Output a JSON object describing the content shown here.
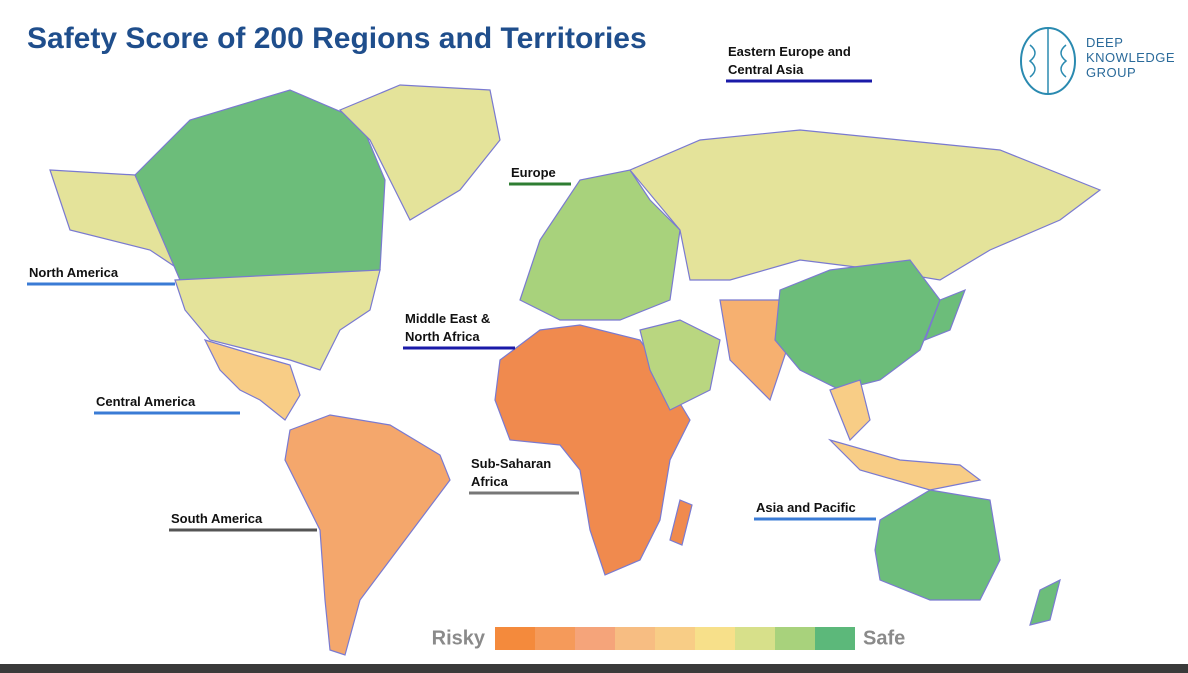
{
  "title": "Safety Score of 200 Regions and Territories",
  "logo": {
    "lines": [
      "DEEP",
      "KNOWLEDGE",
      "GROUP"
    ]
  },
  "regions": [
    {
      "lines": [
        "Eastern Europe and",
        "Central Asia"
      ],
      "underline_color": "#1a1aa8"
    },
    {
      "lines": [
        "Europe"
      ],
      "underline_color": "#2e7d32"
    },
    {
      "lines": [
        "North America"
      ],
      "underline_color": "#3a7bd5"
    },
    {
      "lines": [
        "Middle East &",
        "North Africa"
      ],
      "underline_color": "#1a1aa8"
    },
    {
      "lines": [
        "Central America"
      ],
      "underline_color": "#3a7bd5"
    },
    {
      "lines": [
        "Sub-Saharan",
        "Africa"
      ],
      "underline_color": "#777777"
    },
    {
      "lines": [
        "South America"
      ],
      "underline_color": "#555555"
    },
    {
      "lines": [
        "Asia and Pacific"
      ],
      "underline_color": "#3a7bd5"
    }
  ],
  "legend": {
    "low_label": "Risky",
    "high_label": "Safe",
    "colors": [
      "#f48a3c",
      "#f59a5a",
      "#f5a47a",
      "#f7bd82",
      "#f8cd86",
      "#f7e08a",
      "#d7e08a",
      "#a8d27c",
      "#5cb87a"
    ]
  }
}
